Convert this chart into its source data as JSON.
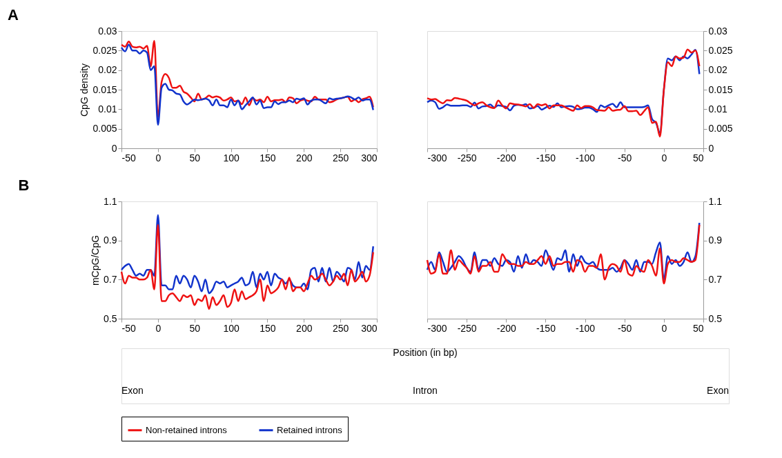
{
  "chart_data": [
    {
      "type": "line",
      "title": "A",
      "ylabel": "CpG density",
      "xlim": [
        -50,
        300
      ],
      "xticks": [
        -50,
        0,
        50,
        100,
        150,
        200,
        250,
        300
      ],
      "ylim": [
        0,
        0.03
      ],
      "yticks": [
        0,
        0.005,
        0.01,
        0.015,
        0.02,
        0.025,
        0.03
      ],
      "legend": "bottom",
      "x": [
        -50,
        -45,
        -40,
        -35,
        -30,
        -25,
        -20,
        -15,
        -10,
        -5,
        0,
        5,
        10,
        15,
        20,
        25,
        30,
        35,
        40,
        45,
        50,
        55,
        60,
        65,
        70,
        75,
        80,
        85,
        90,
        95,
        100,
        105,
        110,
        115,
        120,
        125,
        130,
        135,
        140,
        145,
        150,
        155,
        160,
        165,
        170,
        175,
        180,
        185,
        190,
        195,
        200,
        205,
        210,
        215,
        220,
        225,
        230,
        235,
        240,
        245,
        250,
        255,
        260,
        265,
        270,
        275,
        280,
        285,
        290,
        295
      ],
      "series": [
        {
          "name": "Non-retained introns",
          "color": "#ee1111",
          "values": [
            0.0265,
            0.026,
            0.0273,
            0.026,
            0.0258,
            0.026,
            0.0255,
            0.0262,
            0.021,
            0.0275,
            0.008,
            0.017,
            0.019,
            0.018,
            0.0155,
            0.0155,
            0.016,
            0.0145,
            0.014,
            0.013,
            0.012,
            0.014,
            0.0125,
            0.0128,
            0.0135,
            0.013,
            0.0133,
            0.013,
            0.0122,
            0.0125,
            0.013,
            0.012,
            0.0122,
            0.0113,
            0.013,
            0.011,
            0.0128,
            0.0122,
            0.0125,
            0.0118,
            0.0132,
            0.012,
            0.0123,
            0.0123,
            0.0125,
            0.0118,
            0.013,
            0.0128,
            0.0115,
            0.0122,
            0.0125,
            0.0122,
            0.012,
            0.0132,
            0.0125,
            0.0125,
            0.0125,
            0.0118,
            0.012,
            0.0125,
            0.0128,
            0.013,
            0.0132,
            0.012,
            0.0125,
            0.0118,
            0.0125,
            0.0128,
            0.0132,
            0.0105
          ]
        },
        {
          "name": "Retained introns",
          "color": "#1133cc",
          "values": [
            0.0258,
            0.0248,
            0.0265,
            0.025,
            0.025,
            0.0242,
            0.025,
            0.0245,
            0.02,
            0.021,
            0.006,
            0.0155,
            0.0165,
            0.015,
            0.0148,
            0.014,
            0.0138,
            0.012,
            0.0112,
            0.0118,
            0.0125,
            0.0123,
            0.0125,
            0.0127,
            0.0123,
            0.011,
            0.0125,
            0.011,
            0.011,
            0.0105,
            0.0125,
            0.011,
            0.0122,
            0.01,
            0.011,
            0.012,
            0.013,
            0.0112,
            0.0122,
            0.0103,
            0.0105,
            0.0105,
            0.012,
            0.0113,
            0.0118,
            0.0118,
            0.0122,
            0.0118,
            0.0127,
            0.0125,
            0.0128,
            0.0112,
            0.0122,
            0.0125,
            0.0125,
            0.012,
            0.0115,
            0.0128,
            0.0125,
            0.0127,
            0.0128,
            0.013,
            0.0133,
            0.013,
            0.0125,
            0.013,
            0.0122,
            0.0125,
            0.0125,
            0.0098
          ]
        }
      ]
    },
    {
      "type": "line",
      "xlim": [
        -300,
        50
      ],
      "xticks": [
        -300,
        -250,
        -200,
        -150,
        -100,
        -50,
        0,
        50
      ],
      "y2lim": [
        0,
        0.03
      ],
      "y2ticks": [
        0,
        0.005,
        0.01,
        0.015,
        0.02,
        0.025,
        0.03
      ],
      "legend": "bottom",
      "x": [
        -300,
        -295,
        -290,
        -285,
        -280,
        -275,
        -270,
        -265,
        -260,
        -255,
        -250,
        -245,
        -240,
        -235,
        -230,
        -225,
        -220,
        -215,
        -210,
        -205,
        -200,
        -195,
        -190,
        -185,
        -180,
        -175,
        -170,
        -165,
        -160,
        -155,
        -150,
        -145,
        -140,
        -135,
        -130,
        -125,
        -120,
        -115,
        -110,
        -105,
        -100,
        -95,
        -90,
        -85,
        -80,
        -75,
        -70,
        -65,
        -60,
        -55,
        -50,
        -45,
        -40,
        -35,
        -30,
        -25,
        -20,
        -15,
        -10,
        -5,
        0,
        5,
        10,
        15,
        20,
        25,
        30,
        35,
        40,
        45
      ],
      "series": [
        {
          "name": "Retained introns",
          "color": "#1133cc",
          "axis": "y2",
          "values": [
            0.0118,
            0.0122,
            0.0118,
            0.0101,
            0.0105,
            0.0112,
            0.0109,
            0.0109,
            0.0109,
            0.011,
            0.011,
            0.0106,
            0.0117,
            0.0102,
            0.0107,
            0.0108,
            0.0112,
            0.0104,
            0.011,
            0.0108,
            0.0106,
            0.0097,
            0.0109,
            0.0111,
            0.011,
            0.0113,
            0.0102,
            0.0104,
            0.0108,
            0.0099,
            0.0104,
            0.0109,
            0.0106,
            0.0115,
            0.0105,
            0.0107,
            0.0108,
            0.0106,
            0.01,
            0.0101,
            0.0104,
            0.0104,
            0.01,
            0.0093,
            0.011,
            0.0105,
            0.011,
            0.0114,
            0.0105,
            0.0118,
            0.0105,
            0.0105,
            0.0105,
            0.0105,
            0.0105,
            0.0106,
            0.011,
            0.0075,
            0.0065,
            0.004,
            0.015,
            0.023,
            0.0225,
            0.0235,
            0.0225,
            0.0235,
            0.023,
            0.024,
            0.0252,
            0.019
          ]
        },
        {
          "name": "Non-retained introns",
          "color": "#ee1111",
          "axis": "y2",
          "values": [
            0.0128,
            0.0125,
            0.0126,
            0.012,
            0.0115,
            0.0123,
            0.0122,
            0.0129,
            0.0127,
            0.0125,
            0.0122,
            0.0115,
            0.011,
            0.0115,
            0.0118,
            0.011,
            0.0105,
            0.0103,
            0.0122,
            0.011,
            0.0102,
            0.0115,
            0.0113,
            0.0112,
            0.011,
            0.0107,
            0.0113,
            0.0103,
            0.0113,
            0.011,
            0.0113,
            0.0102,
            0.011,
            0.011,
            0.011,
            0.0105,
            0.01,
            0.0096,
            0.011,
            0.0103,
            0.0108,
            0.0108,
            0.0105,
            0.0098,
            0.0097,
            0.0096,
            0.0105,
            0.0096,
            0.0098,
            0.0099,
            0.0108,
            0.0095,
            0.0095,
            0.0096,
            0.0085,
            0.0095,
            0.0105,
            0.0065,
            0.0068,
            0.003,
            0.015,
            0.022,
            0.021,
            0.0235,
            0.023,
            0.0232,
            0.0253,
            0.0245,
            0.025,
            0.021
          ]
        }
      ]
    },
    {
      "type": "line",
      "title": "B",
      "ylabel": "mCpG/CpG",
      "xlim": [
        -50,
        300
      ],
      "xticks": [
        -50,
        0,
        50,
        100,
        150,
        200,
        250,
        300
      ],
      "ylim": [
        0.5,
        1.1
      ],
      "yticks": [
        0.5,
        0.7,
        0.9,
        1.1
      ],
      "legend": "bottom",
      "x": [
        -50,
        -45,
        -40,
        -35,
        -30,
        -25,
        -20,
        -15,
        -10,
        -5,
        0,
        5,
        10,
        15,
        20,
        25,
        30,
        35,
        40,
        45,
        50,
        55,
        60,
        65,
        70,
        75,
        80,
        85,
        90,
        95,
        100,
        105,
        110,
        115,
        120,
        125,
        130,
        135,
        140,
        145,
        150,
        155,
        160,
        165,
        170,
        175,
        180,
        185,
        190,
        195,
        200,
        205,
        210,
        215,
        220,
        225,
        230,
        235,
        240,
        245,
        250,
        255,
        260,
        265,
        270,
        275,
        280,
        285,
        290,
        295
      ],
      "series": [
        {
          "name": "Retained introns",
          "color": "#1133cc",
          "values": [
            0.75,
            0.77,
            0.78,
            0.75,
            0.72,
            0.73,
            0.72,
            0.75,
            0.75,
            0.72,
            1.03,
            0.67,
            0.67,
            0.65,
            0.65,
            0.72,
            0.68,
            0.72,
            0.7,
            0.66,
            0.72,
            0.69,
            0.64,
            0.7,
            0.63,
            0.65,
            0.69,
            0.68,
            0.69,
            0.66,
            0.67,
            0.68,
            0.69,
            0.71,
            0.67,
            0.68,
            0.74,
            0.66,
            0.73,
            0.7,
            0.74,
            0.67,
            0.73,
            0.71,
            0.7,
            0.68,
            0.7,
            0.67,
            0.66,
            0.66,
            0.68,
            0.65,
            0.75,
            0.76,
            0.69,
            0.76,
            0.69,
            0.76,
            0.69,
            0.74,
            0.72,
            0.69,
            0.76,
            0.75,
            0.7,
            0.79,
            0.71,
            0.77,
            0.75,
            0.87
          ]
        },
        {
          "name": "Non-retained introns",
          "color": "#ee1111",
          "values": [
            0.74,
            0.68,
            0.72,
            0.71,
            0.71,
            0.7,
            0.7,
            0.71,
            0.75,
            0.65,
            0.98,
            0.59,
            0.59,
            0.62,
            0.63,
            0.61,
            0.59,
            0.62,
            0.61,
            0.62,
            0.57,
            0.6,
            0.59,
            0.62,
            0.55,
            0.61,
            0.57,
            0.59,
            0.62,
            0.56,
            0.58,
            0.65,
            0.59,
            0.64,
            0.6,
            0.61,
            0.62,
            0.64,
            0.7,
            0.59,
            0.67,
            0.63,
            0.64,
            0.66,
            0.7,
            0.65,
            0.71,
            0.64,
            0.66,
            0.66,
            0.64,
            0.68,
            0.72,
            0.7,
            0.71,
            0.73,
            0.7,
            0.67,
            0.69,
            0.72,
            0.7,
            0.73,
            0.67,
            0.75,
            0.69,
            0.71,
            0.74,
            0.69,
            0.72,
            0.84
          ]
        }
      ]
    },
    {
      "type": "line",
      "xlim": [
        -300,
        50
      ],
      "xticks": [
        -300,
        -250,
        -200,
        -150,
        -100,
        -50,
        0,
        50
      ],
      "y2lim": [
        0.5,
        1.1
      ],
      "y2ticks": [
        0.5,
        0.7,
        0.9,
        1.1
      ],
      "legend": "bottom",
      "x": [
        -300,
        -295,
        -290,
        -285,
        -280,
        -275,
        -270,
        -265,
        -260,
        -255,
        -250,
        -245,
        -240,
        -235,
        -230,
        -225,
        -220,
        -215,
        -210,
        -205,
        -200,
        -195,
        -190,
        -185,
        -180,
        -175,
        -170,
        -165,
        -160,
        -155,
        -150,
        -145,
        -140,
        -135,
        -130,
        -125,
        -120,
        -115,
        -110,
        -105,
        -100,
        -95,
        -90,
        -85,
        -80,
        -75,
        -70,
        -65,
        -60,
        -55,
        -50,
        -45,
        -40,
        -35,
        -30,
        -25,
        -20,
        -15,
        -10,
        -5,
        0,
        5,
        10,
        15,
        20,
        25,
        30,
        35,
        40,
        45
      ],
      "series": [
        {
          "name": "Retained introns",
          "color": "#1133cc",
          "axis": "y2",
          "values": [
            0.75,
            0.79,
            0.75,
            0.84,
            0.79,
            0.74,
            0.76,
            0.79,
            0.82,
            0.8,
            0.76,
            0.74,
            0.84,
            0.75,
            0.8,
            0.8,
            0.77,
            0.81,
            0.78,
            0.77,
            0.8,
            0.79,
            0.74,
            0.82,
            0.76,
            0.83,
            0.78,
            0.8,
            0.79,
            0.77,
            0.85,
            0.8,
            0.75,
            0.81,
            0.8,
            0.85,
            0.74,
            0.83,
            0.77,
            0.82,
            0.79,
            0.78,
            0.79,
            0.76,
            0.75,
            0.75,
            0.75,
            0.76,
            0.74,
            0.76,
            0.8,
            0.78,
            0.75,
            0.8,
            0.74,
            0.79,
            0.79,
            0.78,
            0.84,
            0.89,
            0.7,
            0.82,
            0.78,
            0.8,
            0.77,
            0.79,
            0.84,
            0.79,
            0.82,
            0.99
          ]
        },
        {
          "name": "Non-retained introns",
          "color": "#ee1111",
          "axis": "y2",
          "values": [
            0.8,
            0.73,
            0.74,
            0.83,
            0.73,
            0.73,
            0.85,
            0.75,
            0.8,
            0.78,
            0.76,
            0.73,
            0.82,
            0.74,
            0.77,
            0.77,
            0.79,
            0.74,
            0.74,
            0.83,
            0.8,
            0.78,
            0.78,
            0.77,
            0.77,
            0.79,
            0.78,
            0.78,
            0.8,
            0.82,
            0.78,
            0.82,
            0.77,
            0.78,
            0.78,
            0.79,
            0.79,
            0.74,
            0.8,
            0.79,
            0.74,
            0.77,
            0.77,
            0.76,
            0.83,
            0.7,
            0.76,
            0.78,
            0.77,
            0.74,
            0.8,
            0.73,
            0.72,
            0.77,
            0.75,
            0.74,
            0.8,
            0.77,
            0.72,
            0.86,
            0.68,
            0.78,
            0.8,
            0.79,
            0.79,
            0.81,
            0.8,
            0.79,
            0.8,
            0.98
          ]
        }
      ]
    },
    {
      "type": "other",
      "xlabel": "Position (in bp)",
      "annotations": [
        "Exon",
        "Intron",
        "Exon"
      ]
    }
  ]
}
